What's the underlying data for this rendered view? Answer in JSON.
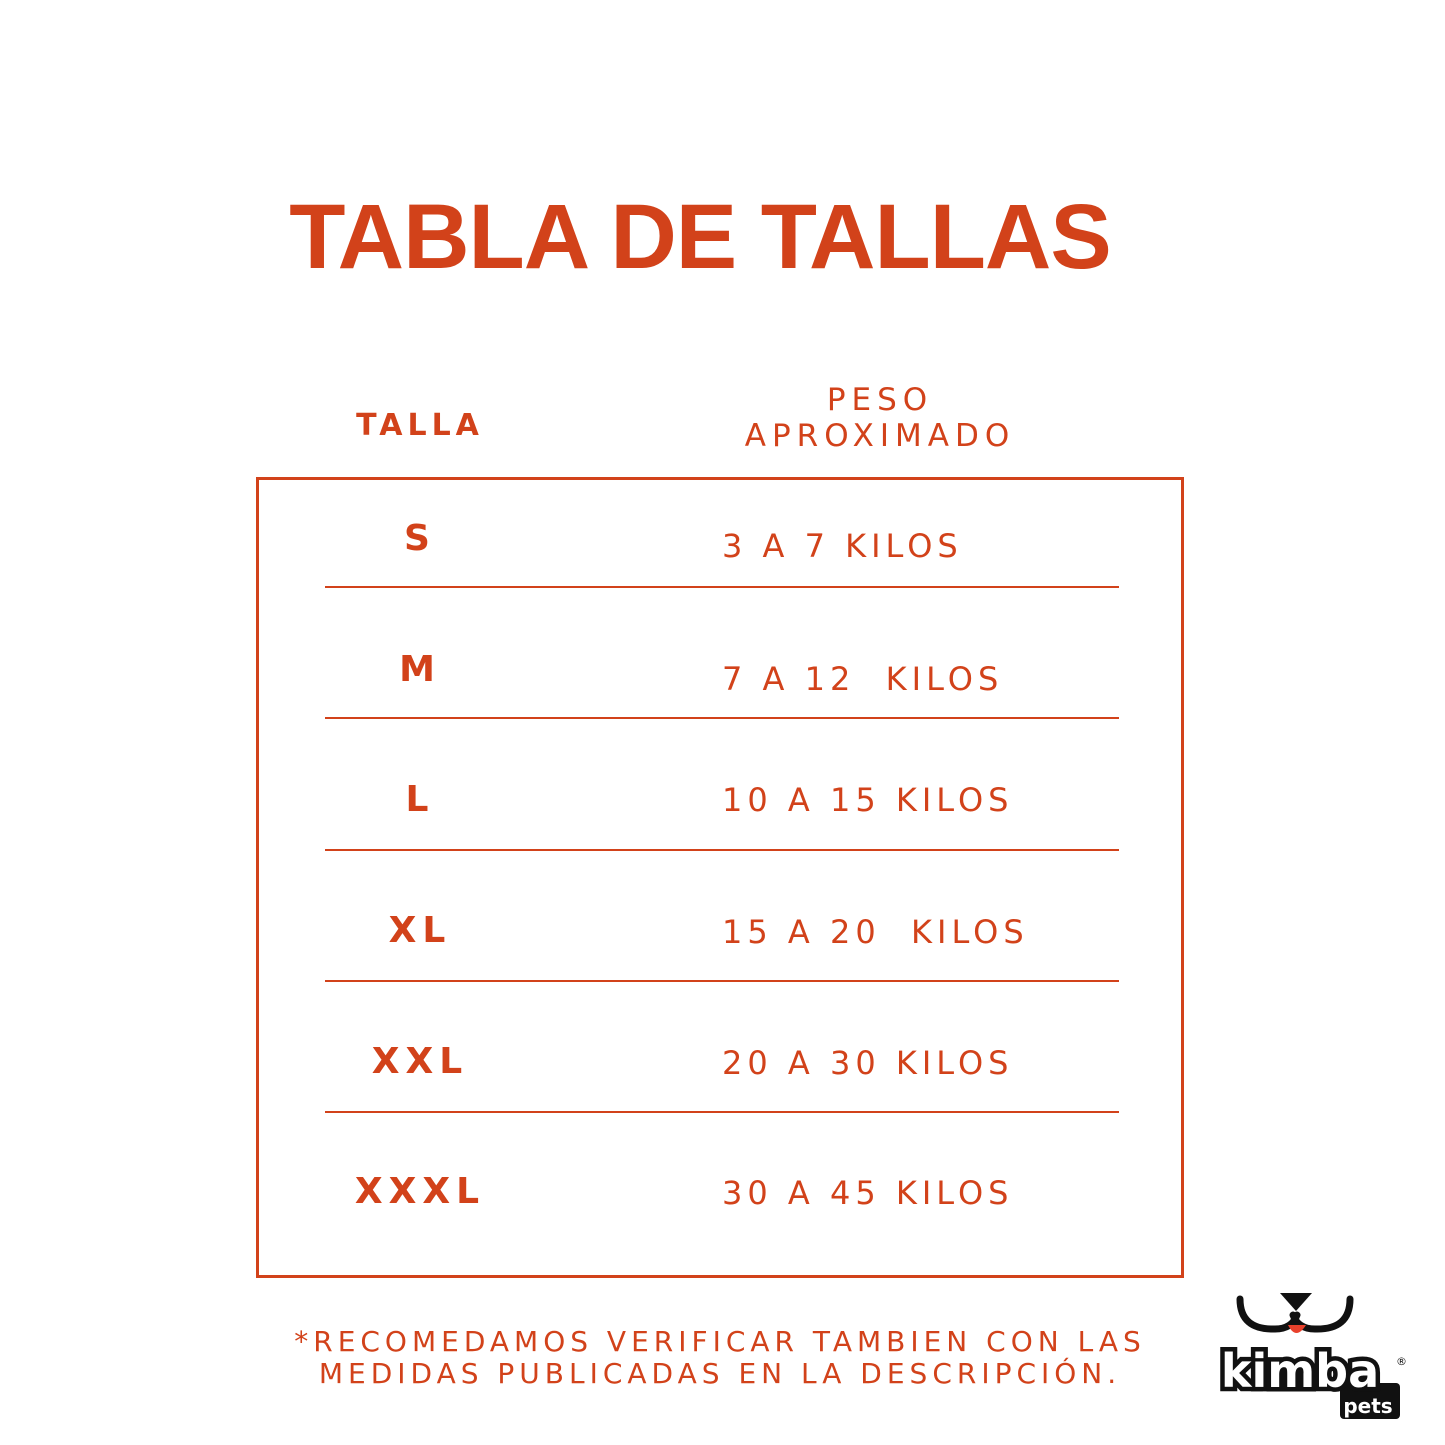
{
  "title": "TABLA DE TALLAS",
  "headers": {
    "size": "TALLA",
    "weight_line1": "PESO",
    "weight_line2": "APROXIMADO"
  },
  "rows": [
    {
      "size": "S",
      "weight": "3 A 7 KILOS"
    },
    {
      "size": "M",
      "weight": "7 A 12  KILOS"
    },
    {
      "size": "L",
      "weight": "10 A 15 KILOS"
    },
    {
      "size": "XL",
      "weight": "15 A 20  KILOS"
    },
    {
      "size": "XXL",
      "weight": "20 A 30 KILOS"
    },
    {
      "size": "XXXL",
      "weight": "30 A 45 KILOS"
    }
  ],
  "note": {
    "line1": "*RECOMEDAMOS VERIFICAR TAMBIEN CON LAS",
    "line2": "MEDIDAS PUBLICADAS EN LA DESCRIPCIÓN."
  },
  "logo": {
    "brand": "kimba",
    "sub": "pets",
    "mark": "®"
  },
  "colors": {
    "accent": "#d2421a",
    "logo_black": "#111111",
    "logo_tongue": "#e8412c"
  }
}
